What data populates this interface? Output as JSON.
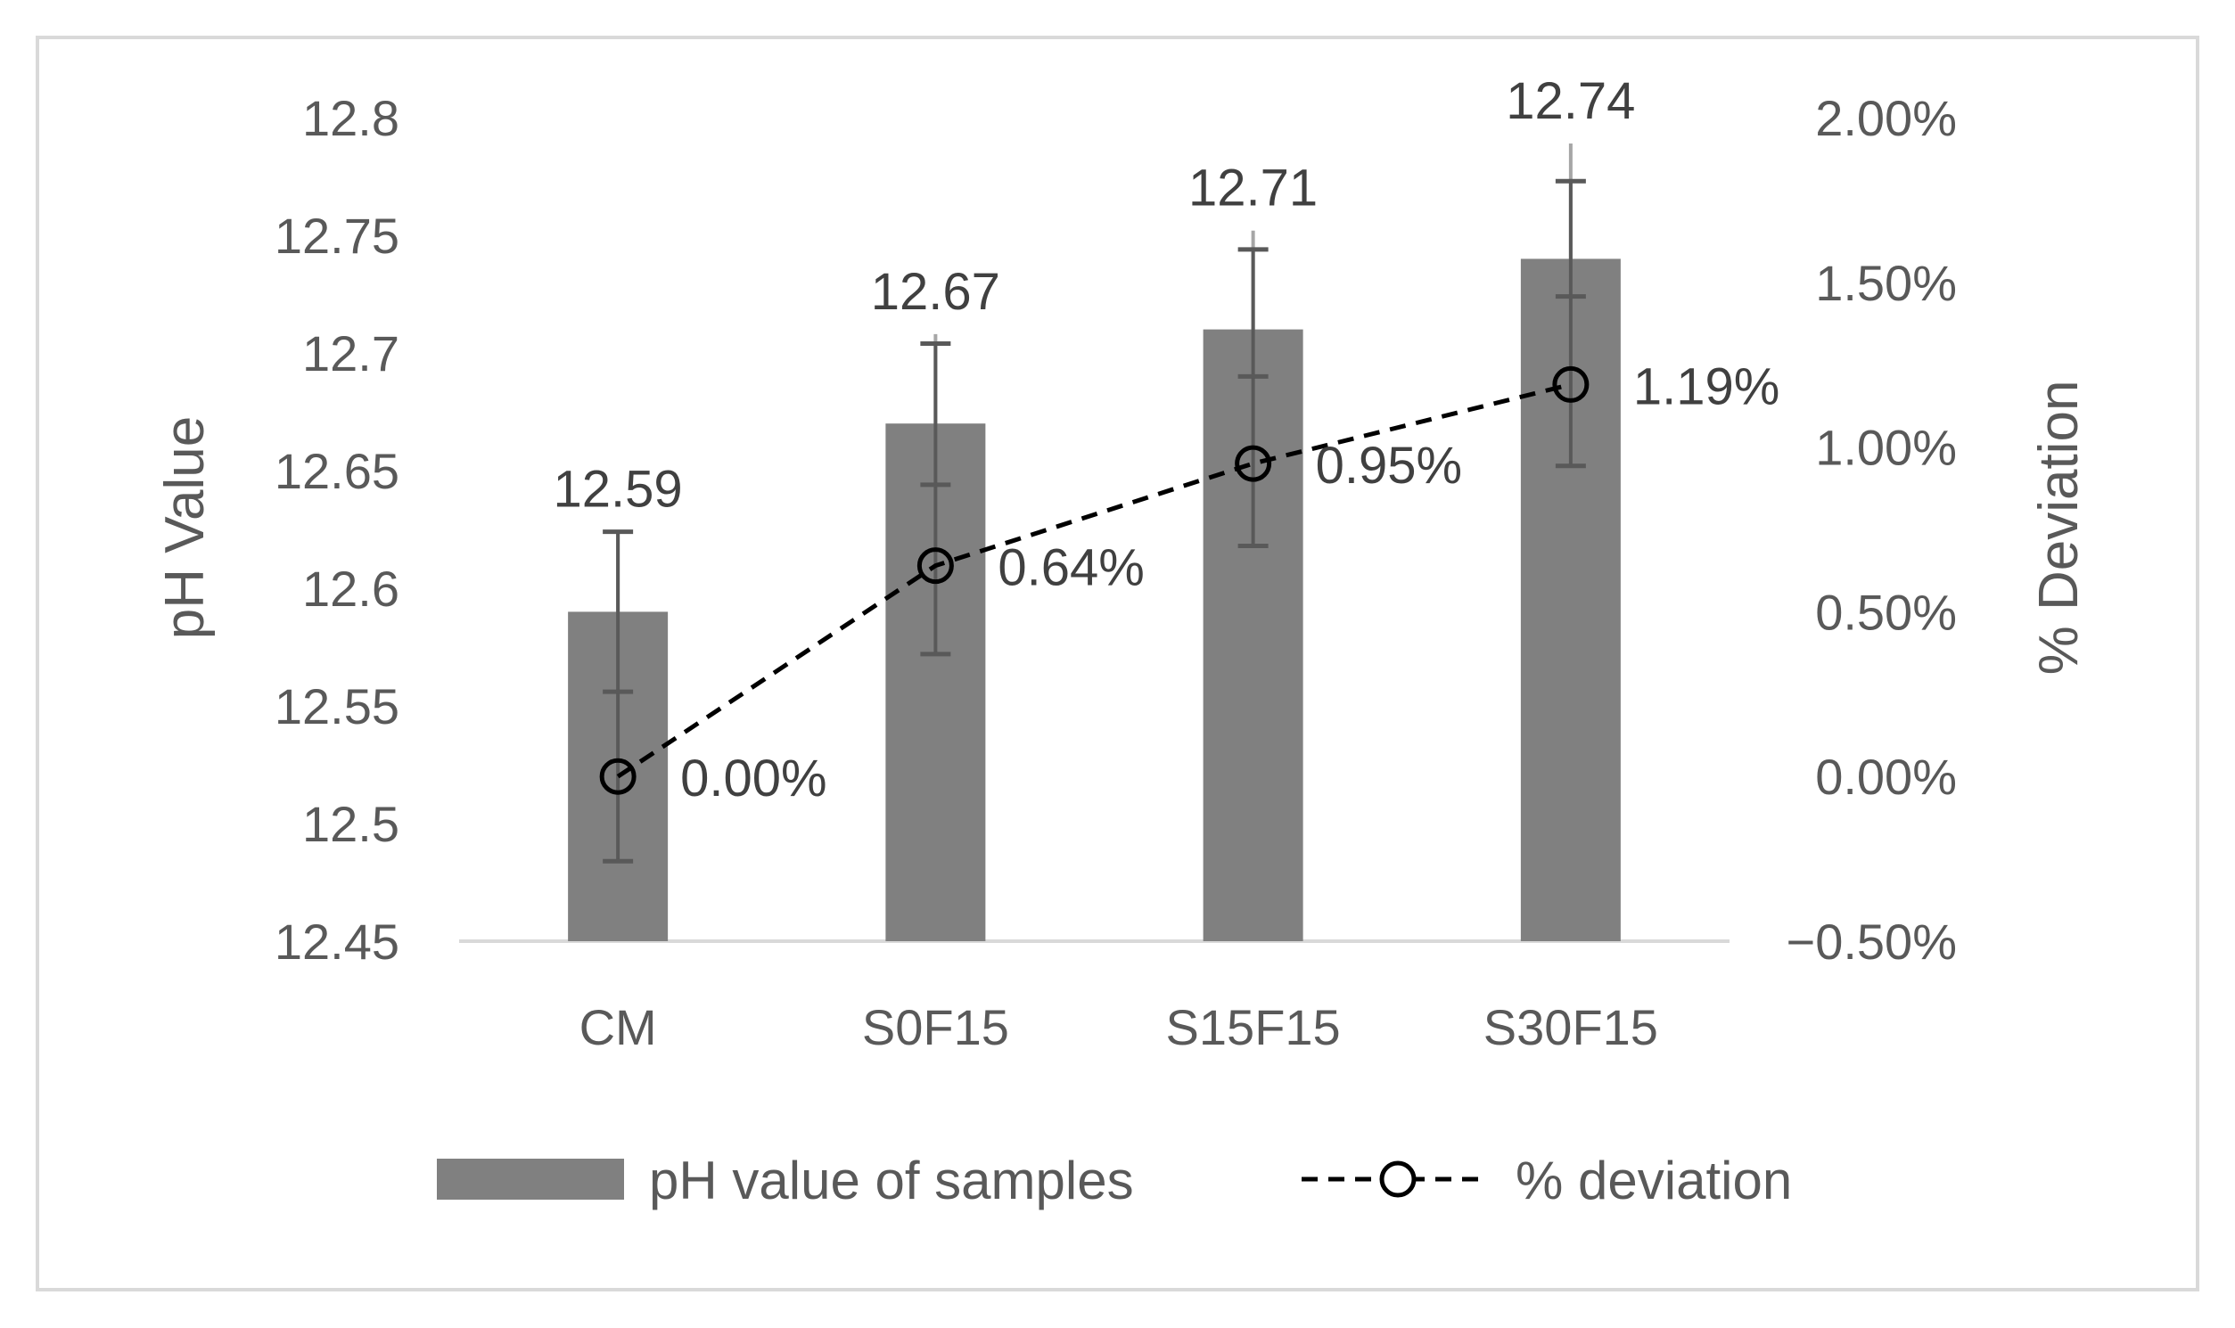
{
  "chart_data": {
    "type": "bar",
    "categories": [
      "CM",
      "S0F15",
      "S15F15",
      "S30F15"
    ],
    "series": [
      {
        "name": "pH value of samples",
        "chart": "bar",
        "axis": "left",
        "values": [
          12.59,
          12.67,
          12.71,
          12.74
        ],
        "value_labels": [
          "12.59",
          "12.67",
          "12.71",
          "12.74"
        ],
        "error_bars": [
          {
            "bar": [
              12.59,
              12.624
            ],
            "outer": [
              12.484,
              12.624
            ],
            "inner": [
              12.484,
              12.556
            ]
          },
          {
            "bar": [
              12.67,
              12.708
            ],
            "outer": [
              12.572,
              12.704
            ],
            "inner": [
              12.572,
              12.644
            ]
          },
          {
            "bar": [
              12.71,
              12.752
            ],
            "outer": [
              12.618,
              12.744
            ],
            "inner": [
              12.618,
              12.69
            ]
          },
          {
            "bar": [
              12.74,
              12.789
            ],
            "outer": [
              12.652,
              12.773
            ],
            "inner": [
              12.652,
              12.724
            ]
          }
        ],
        "color": "#808080"
      },
      {
        "name": "% deviation",
        "chart": "line",
        "axis": "right",
        "values": [
          0.0,
          0.64,
          0.95,
          1.19
        ],
        "value_labels": [
          "0.00%",
          "0.64%",
          "0.95%",
          "1.19%"
        ],
        "color": "#000000",
        "style": "dashed",
        "marker": "open-circle"
      }
    ],
    "title": "",
    "xlabel": "",
    "ylabel": "pH Value",
    "y2label": "% Deviation",
    "ylim": [
      12.45,
      12.8
    ],
    "yticks": [
      "12.45",
      "12.5",
      "12.55",
      "12.6",
      "12.65",
      "12.7",
      "12.75",
      "12.8"
    ],
    "y2lim": [
      -0.5,
      2.0
    ],
    "y2ticks": [
      "−0.50%",
      "0.00%",
      "0.50%",
      "1.00%",
      "1.50%",
      "2.00%"
    ],
    "grid": false,
    "legend_position": "bottom"
  }
}
